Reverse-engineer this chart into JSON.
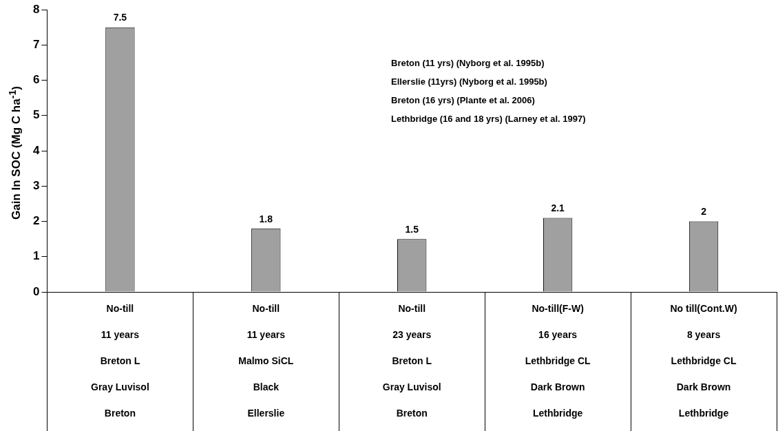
{
  "chart_data": {
    "type": "bar",
    "ylabel": "Gain In SOC (Mg C ha$^{-1}$)",
    "categories": [
      "No-till\n11 years\nBreton L\nGray Luvisol\nBreton",
      "No-till\n11 years\nMalmo SiCL\nBlack\nEllerslie",
      "No-till\n23 years\nBreton L\nGray Luvisol\nBreton",
      "No-till(F-W)\n16 years\nLethbridge CL\nDark Brown\nLethbridge",
      "No till(Cont.W)\n8 years\nLethbridge CL\nDark Brown\nLethbridge"
    ],
    "values": [
      7.5,
      1.8,
      1.5,
      2.1,
      2
    ],
    "color": "#a0a0a0",
    "ylim": [
      0,
      8
    ],
    "yticks": [
      0,
      1,
      2,
      3,
      4,
      5,
      6,
      7,
      8
    ],
    "data_labels": true,
    "grid": false,
    "legend": false,
    "annotations": [
      "Breton (11 yrs) (Nyborg et al. 1995b)",
      "Ellerslie (11yrs) (Nyborg et al. 1995b)",
      "Breton (16 yrs) (Plante et al. 2006)",
      "Lethbridge (16 and 18 yrs) (Larney et al. 1997)"
    ]
  }
}
